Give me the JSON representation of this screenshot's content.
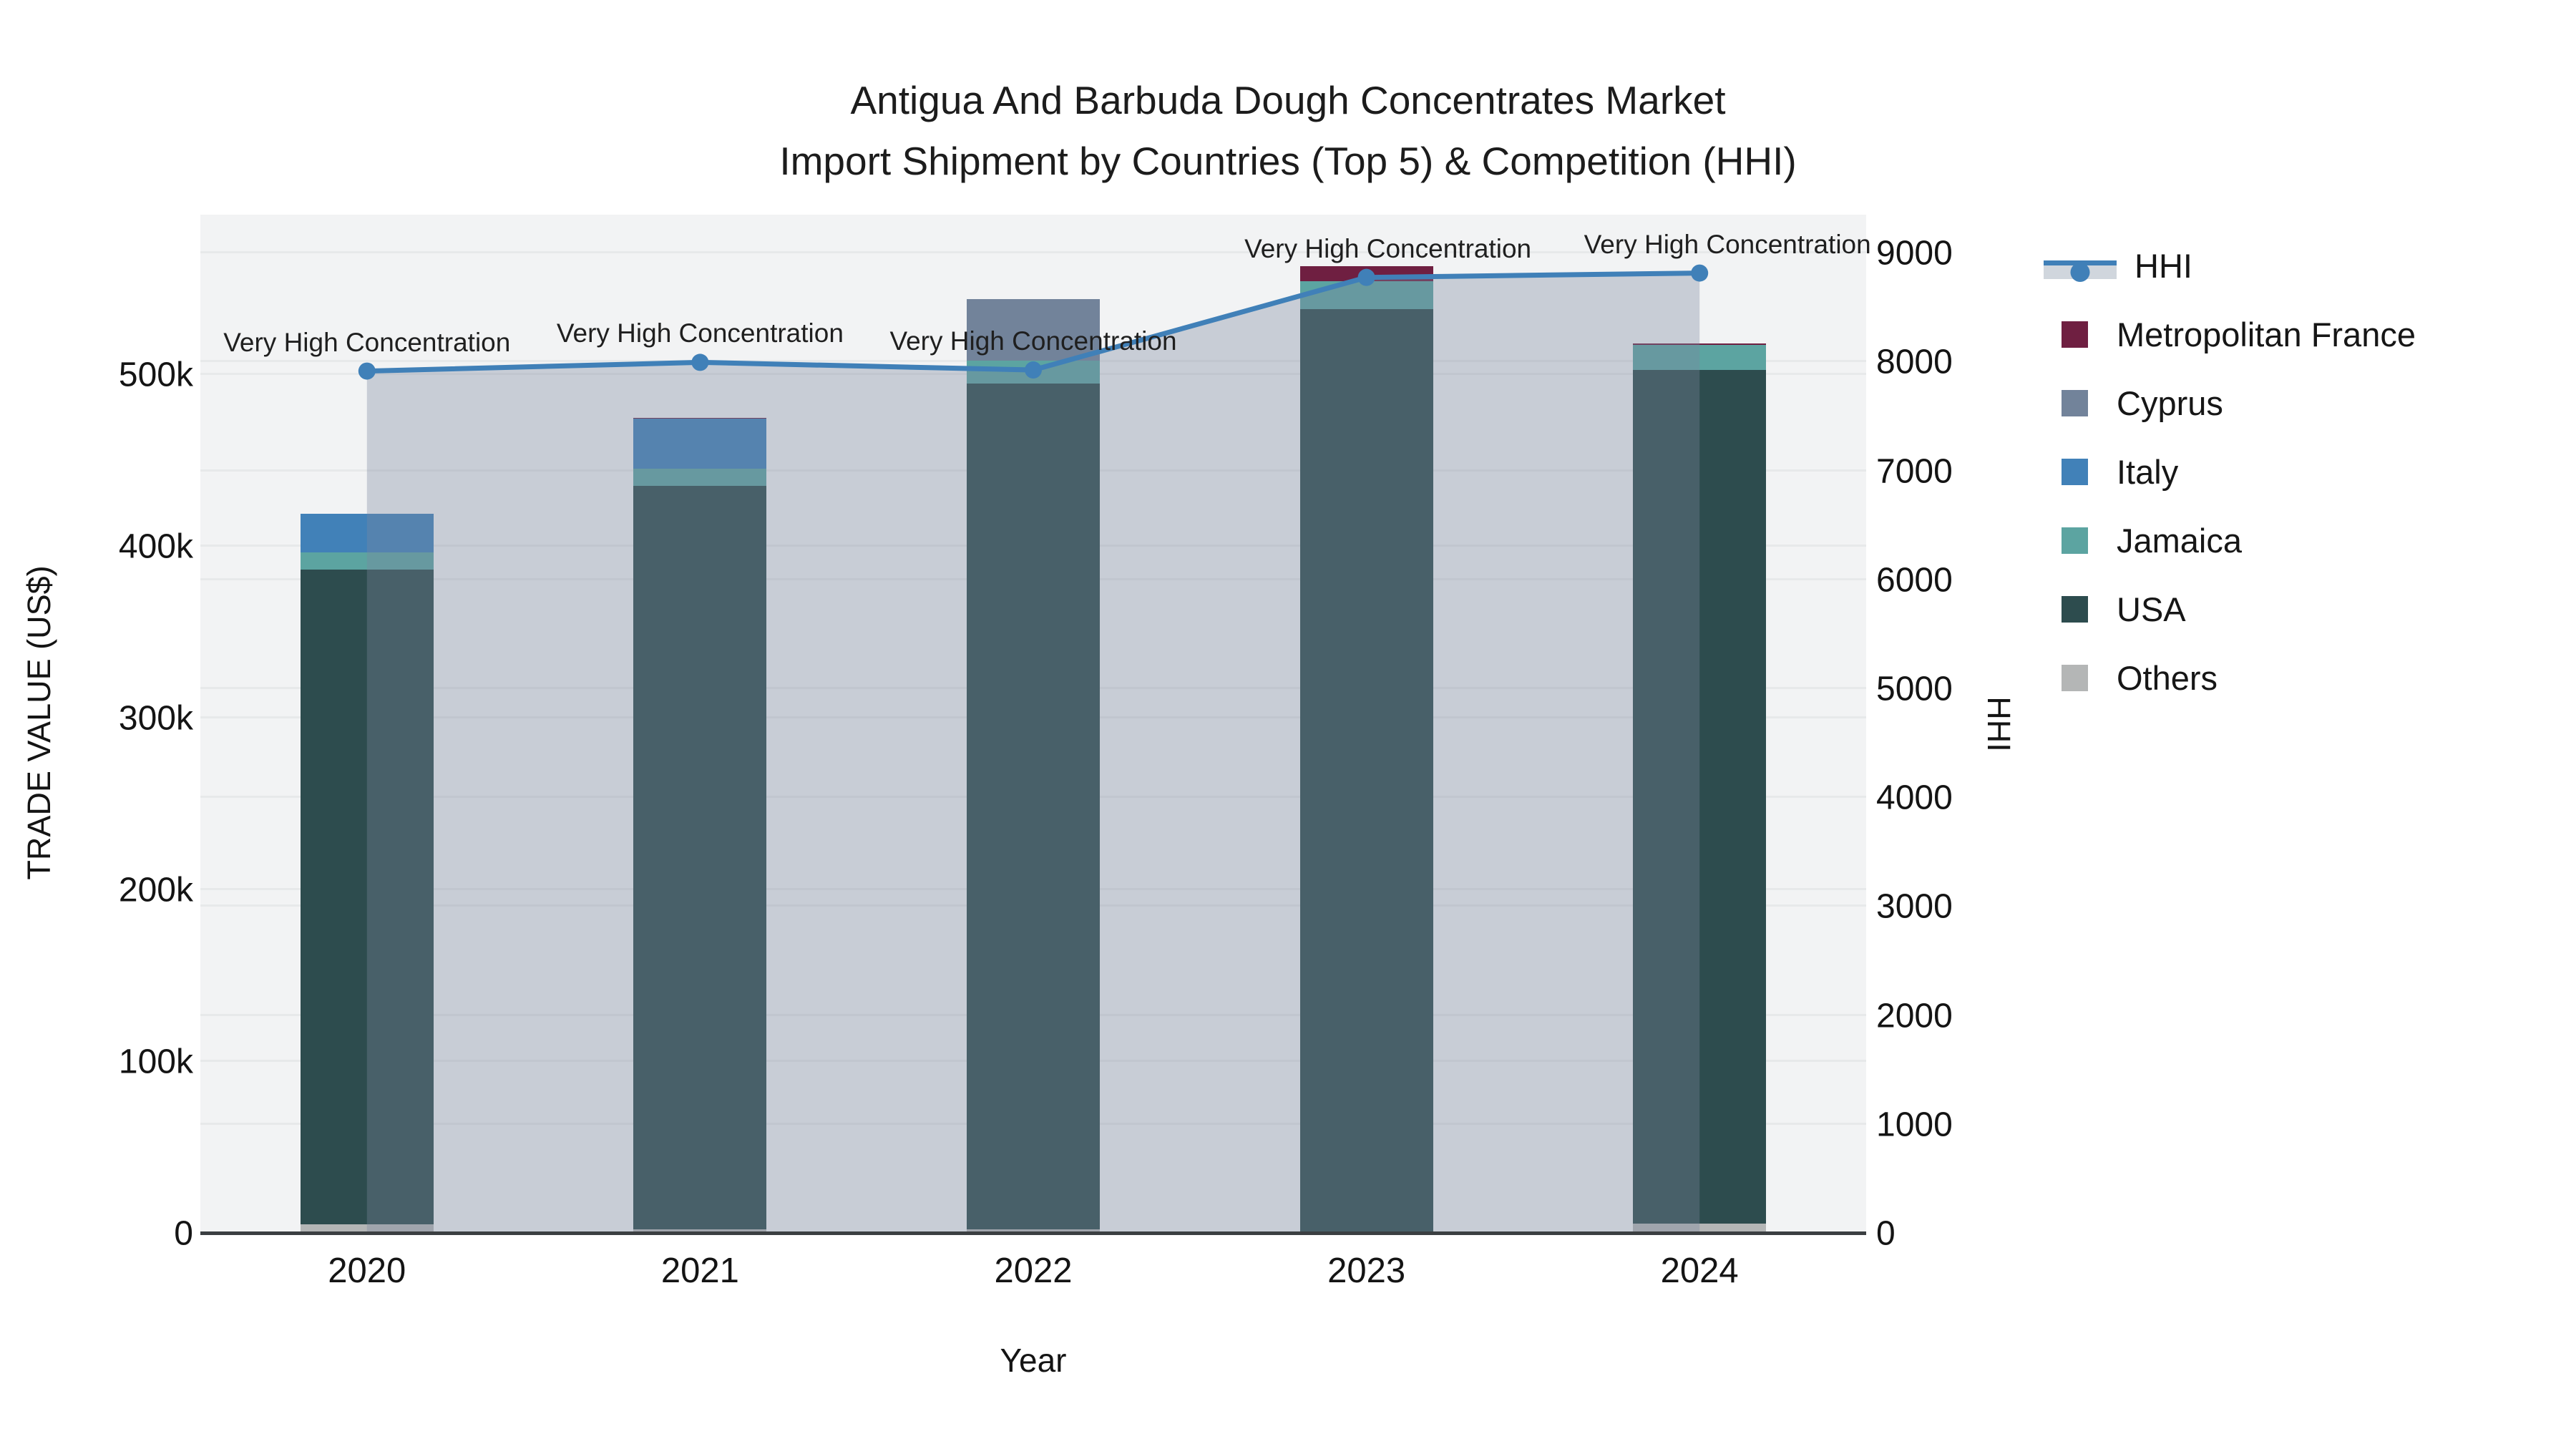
{
  "title": {
    "line1": "Antigua And Barbuda Dough Concentrates Market",
    "line2": "Import Shipment by Countries (Top 5) & Competition (HHI)"
  },
  "axes": {
    "y_left": {
      "label": "TRADE VALUE (US$)",
      "ticks": [
        "0",
        "100k",
        "200k",
        "300k",
        "400k",
        "500k"
      ]
    },
    "y_right": {
      "label": "HHI",
      "ticks": [
        "0",
        "1000",
        "2000",
        "3000",
        "4000",
        "5000",
        "6000",
        "7000",
        "8000",
        "9000"
      ]
    },
    "x": {
      "label": "Year",
      "ticks": [
        "2020",
        "2021",
        "2022",
        "2023",
        "2024"
      ]
    }
  },
  "legend": [
    {
      "label": "HHI",
      "type": "line",
      "color": "#4080b8"
    },
    {
      "label": "Metropolitan France",
      "type": "box",
      "color": "#6f1f41"
    },
    {
      "label": "Cyprus",
      "type": "box",
      "color": "#72839a"
    },
    {
      "label": "Italy",
      "type": "box",
      "color": "#4181b8"
    },
    {
      "label": "Jamaica",
      "type": "box",
      "color": "#5ca4a1"
    },
    {
      "label": "USA",
      "type": "box",
      "color": "#2d4c4e"
    },
    {
      "label": "Others",
      "type": "box",
      "color": "#b4b6b6"
    }
  ],
  "chart_data": {
    "type": "bar+line",
    "title": "Antigua And Barbuda Dough Concentrates Market Import Shipment by Countries (Top 5) & Competition (HHI)",
    "xlabel": "Year",
    "ylabel_left": "TRADE VALUE (US$)",
    "ylabel_right": "HHI",
    "ylim_left": [
      0,
      593000
    ],
    "ylim_right": [
      0,
      9360
    ],
    "grid": true,
    "legend_position": "right",
    "categories": [
      "2020",
      "2021",
      "2022",
      "2023",
      "2024"
    ],
    "series": [
      {
        "name": "Others",
        "color": "#b4b6b6",
        "values": [
          5600,
          2500,
          2500,
          1000,
          6000
        ]
      },
      {
        "name": "USA",
        "color": "#2d4c4e",
        "values": [
          381100,
          433100,
          492300,
          537200,
          497100
        ]
      },
      {
        "name": "Jamaica",
        "color": "#5ca4a1",
        "values": [
          10000,
          10000,
          13700,
          16300,
          14600
        ]
      },
      {
        "name": "Italy",
        "color": "#4181b8",
        "values": [
          22500,
          28800,
          0,
          0,
          0
        ]
      },
      {
        "name": "Cyprus",
        "color": "#72839a",
        "values": [
          0,
          0,
          35800,
          0,
          0
        ]
      },
      {
        "name": "Metropolitan France",
        "color": "#6f1f41",
        "values": [
          0,
          800,
          0,
          8800,
          800
        ]
      }
    ],
    "line": {
      "name": "HHI",
      "color": "#4080b8",
      "fill_color": "rgba(123,136,159,0.35)",
      "values": [
        7920,
        8000,
        7930,
        8780,
        8820
      ]
    },
    "annotations": [
      {
        "year": "2020",
        "text": "Very High Concentration"
      },
      {
        "year": "2021",
        "text": "Very High Concentration"
      },
      {
        "year": "2022",
        "text": "Very High Concentration"
      },
      {
        "year": "2023",
        "text": "Very High Concentration"
      },
      {
        "year": "2024",
        "text": "Very High Concentration"
      }
    ]
  }
}
